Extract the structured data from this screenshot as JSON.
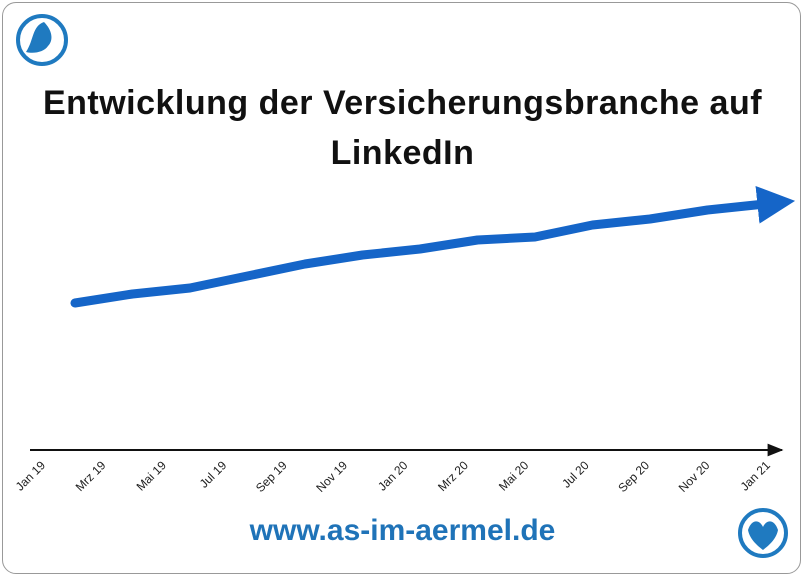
{
  "chart_data": {
    "type": "line",
    "title": "Entwicklung der Versicherungsbranche auf LinkedIn",
    "categories": [
      "Jan 19",
      "Mrz 19",
      "Mai 19",
      "Jul 19",
      "Sep 19",
      "Nov 19",
      "Jan 20",
      "Mrz 20",
      "Mai 20",
      "Jul 20",
      "Sep 20",
      "Nov 20",
      "Jan 21"
    ],
    "series": [
      {
        "color": "#1565c8",
        "values": [
          49,
          52,
          54,
          58,
          62,
          65,
          67,
          70,
          71,
          75,
          77,
          80,
          82
        ]
      }
    ],
    "ylim": [
      0,
      100
    ],
    "footer": "www.as-im-aermel.de"
  }
}
